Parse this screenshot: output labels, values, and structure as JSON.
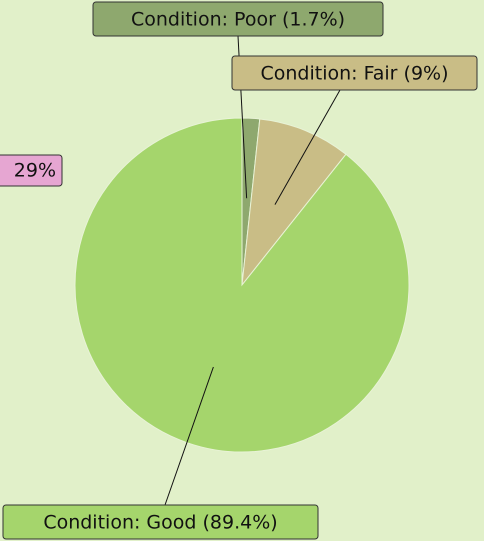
{
  "chart_data": {
    "type": "pie",
    "values": [
      1.7,
      9,
      89.4
    ],
    "value_labels": [
      "Condition: Poor (1.7%)",
      "Condition: Fair (9%)",
      "Condition: Good (89.4%)"
    ],
    "colors": [
      "#8ea86e",
      "#c9bd86",
      "#a5d56c"
    ],
    "annotations": [
      "29%"
    ]
  }
}
